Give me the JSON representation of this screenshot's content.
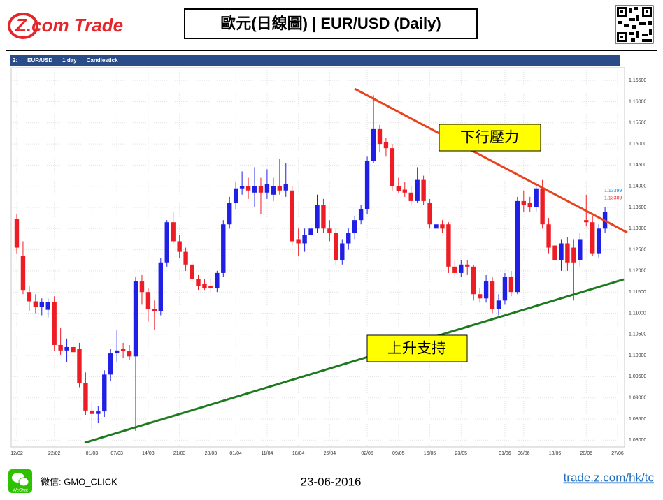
{
  "header": {
    "logo": "Z.com Trade",
    "title": "歐元(日線圖) | EUR/USD (Daily)"
  },
  "chart_data": {
    "type": "candlestick",
    "toolbar": [
      "2:",
      "EUR/USD",
      "1 day",
      "Candlestick"
    ],
    "categories": [
      "12/02",
      null,
      null,
      null,
      null,
      null,
      "22/02",
      null,
      null,
      null,
      null,
      null,
      "01/03",
      null,
      null,
      null,
      "07/03",
      null,
      null,
      null,
      null,
      "14/03",
      null,
      null,
      null,
      null,
      "21/03",
      null,
      null,
      null,
      null,
      "28/03",
      null,
      null,
      null,
      "01/04",
      null,
      null,
      null,
      null,
      "11/04",
      null,
      null,
      null,
      null,
      "18/04",
      null,
      null,
      null,
      null,
      "25/04",
      null,
      null,
      null,
      null,
      null,
      "02/05",
      null,
      null,
      null,
      null,
      "09/05",
      null,
      null,
      null,
      null,
      "16/05",
      null,
      null,
      null,
      null,
      "23/05",
      null,
      null,
      null,
      null,
      null,
      null,
      "01/06",
      null,
      null,
      "06/06",
      null,
      null,
      null,
      null,
      "13/06",
      null,
      null,
      null,
      null,
      "20/06",
      null,
      null,
      null,
      null,
      "27/06"
    ],
    "ohlc": [
      [
        1.1323,
        1.1335,
        1.124,
        1.1255
      ],
      [
        1.1235,
        1.127,
        1.1145,
        1.1155
      ],
      [
        1.115,
        1.1165,
        1.1105,
        1.1128
      ],
      [
        1.1128,
        1.1145,
        1.11,
        1.1115
      ],
      [
        1.1115,
        1.1135,
        1.1095,
        1.1127
      ],
      [
        1.1108,
        1.1135,
        1.109,
        1.1127
      ],
      [
        1.1127,
        1.114,
        1.101,
        1.1025
      ],
      [
        1.1025,
        1.1065,
        1.1,
        1.1012
      ],
      [
        1.1012,
        1.104,
        1.0985,
        1.102
      ],
      [
        1.102,
        1.105,
        1.0995,
        1.1008
      ],
      [
        1.1015,
        1.103,
        1.0925,
        1.0935
      ],
      [
        1.0935,
        1.096,
        1.086,
        1.087
      ],
      [
        1.087,
        1.089,
        1.0825,
        1.0862
      ],
      [
        1.0862,
        1.088,
        1.084,
        1.0868
      ],
      [
        1.0868,
        1.0965,
        1.0855,
        1.0955
      ],
      [
        1.0955,
        1.1015,
        1.094,
        1.1005
      ],
      [
        1.1005,
        1.106,
        1.0985,
        1.1012
      ],
      [
        1.1015,
        1.103,
        1.0995,
        1.101
      ],
      [
        1.101,
        1.1025,
        1.099,
        1.0998
      ],
      [
        1.0998,
        1.1185,
        1.0822,
        1.1175
      ],
      [
        1.1175,
        1.119,
        1.112,
        1.115
      ],
      [
        1.115,
        1.116,
        1.108,
        1.111
      ],
      [
        1.111,
        1.113,
        1.106,
        1.1105
      ],
      [
        1.1105,
        1.123,
        1.1095,
        1.122
      ],
      [
        1.122,
        1.132,
        1.121,
        1.1315
      ],
      [
        1.1315,
        1.134,
        1.1265,
        1.127
      ],
      [
        1.127,
        1.1285,
        1.123,
        1.1245
      ],
      [
        1.1245,
        1.1255,
        1.12,
        1.1215
      ],
      [
        1.1215,
        1.1225,
        1.1165,
        1.118
      ],
      [
        1.118,
        1.119,
        1.1155,
        1.1165
      ],
      [
        1.117,
        1.118,
        1.1155,
        1.116
      ],
      [
        1.1165,
        1.118,
        1.115,
        1.116
      ],
      [
        1.116,
        1.12,
        1.115,
        1.1195
      ],
      [
        1.1195,
        1.132,
        1.1185,
        1.131
      ],
      [
        1.131,
        1.1375,
        1.13,
        1.136
      ],
      [
        1.136,
        1.141,
        1.1345,
        1.1395
      ],
      [
        1.1395,
        1.1435,
        1.138,
        1.14
      ],
      [
        1.14,
        1.142,
        1.137,
        1.139
      ],
      [
        1.1385,
        1.1445,
        1.135,
        1.14
      ],
      [
        1.14,
        1.142,
        1.1335,
        1.1385
      ],
      [
        1.1385,
        1.144,
        1.137,
        1.1405
      ],
      [
        1.138,
        1.142,
        1.1365,
        1.14
      ],
      [
        1.14,
        1.1465,
        1.138,
        1.139
      ],
      [
        1.139,
        1.1455,
        1.1375,
        1.1405
      ],
      [
        1.139,
        1.14,
        1.126,
        1.127
      ],
      [
        1.1275,
        1.13,
        1.1235,
        1.1265
      ],
      [
        1.1265,
        1.13,
        1.1245,
        1.1285
      ],
      [
        1.1285,
        1.131,
        1.127,
        1.13
      ],
      [
        1.13,
        1.138,
        1.129,
        1.1355
      ],
      [
        1.1355,
        1.137,
        1.129,
        1.13
      ],
      [
        1.13,
        1.132,
        1.127,
        1.129
      ],
      [
        1.129,
        1.13,
        1.1215,
        1.1225
      ],
      [
        1.1225,
        1.1275,
        1.1215,
        1.1265
      ],
      [
        1.1265,
        1.13,
        1.125,
        1.129
      ],
      [
        1.129,
        1.133,
        1.1275,
        1.132
      ],
      [
        1.132,
        1.1355,
        1.131,
        1.1345
      ],
      [
        1.1345,
        1.147,
        1.1335,
        1.146
      ],
      [
        1.146,
        1.1615,
        1.1455,
        1.1535
      ],
      [
        1.1535,
        1.1545,
        1.148,
        1.15
      ],
      [
        1.1505,
        1.1515,
        1.147,
        1.149
      ],
      [
        1.149,
        1.15,
        1.139,
        1.14
      ],
      [
        1.14,
        1.142,
        1.1385,
        1.1388
      ],
      [
        1.1392,
        1.141,
        1.1375,
        1.1385
      ],
      [
        1.1385,
        1.14,
        1.1355,
        1.1365
      ],
      [
        1.1365,
        1.1445,
        1.136,
        1.1415
      ],
      [
        1.1415,
        1.1425,
        1.1355,
        1.1365
      ],
      [
        1.136,
        1.137,
        1.13,
        1.131
      ],
      [
        1.13,
        1.1325,
        1.129,
        1.131
      ],
      [
        1.131,
        1.132,
        1.129,
        1.13
      ],
      [
        1.131,
        1.1315,
        1.1195,
        1.121
      ],
      [
        1.121,
        1.1225,
        1.1185,
        1.1195
      ],
      [
        1.1195,
        1.1225,
        1.1185,
        1.1215
      ],
      [
        1.1215,
        1.1225,
        1.119,
        1.121
      ],
      [
        1.121,
        1.1215,
        1.113,
        1.1145
      ],
      [
        1.1145,
        1.116,
        1.1125,
        1.1135
      ],
      [
        1.1135,
        1.119,
        1.1125,
        1.1175
      ],
      [
        1.1175,
        1.1185,
        1.11,
        1.111
      ],
      [
        1.111,
        1.1145,
        1.1095,
        1.113
      ],
      [
        1.113,
        1.1195,
        1.112,
        1.1185
      ],
      [
        1.1185,
        1.12,
        1.114,
        1.115
      ],
      [
        1.115,
        1.1375,
        1.1145,
        1.1365
      ],
      [
        1.1365,
        1.139,
        1.134,
        1.1355
      ],
      [
        1.136,
        1.1375,
        1.134,
        1.135
      ],
      [
        1.135,
        1.141,
        1.134,
        1.1395
      ],
      [
        1.1395,
        1.1415,
        1.13,
        1.131
      ],
      [
        1.131,
        1.1325,
        1.124,
        1.1255
      ],
      [
        1.126,
        1.1275,
        1.12,
        1.1225
      ],
      [
        1.1225,
        1.1275,
        1.12,
        1.1265
      ],
      [
        1.1265,
        1.128,
        1.12,
        1.122
      ],
      [
        1.1255,
        1.1275,
        1.113,
        1.122
      ],
      [
        1.1225,
        1.129,
        1.121,
        1.1275
      ],
      [
        1.132,
        1.138,
        1.1305,
        1.1315
      ],
      [
        1.1315,
        1.133,
        1.1235,
        1.124
      ],
      [
        1.124,
        1.131,
        1.123,
        1.13
      ],
      [
        1.13,
        1.135,
        1.129,
        1.1339
      ],
      null,
      null
    ],
    "up_color": "#1f1fe6",
    "down_color": "#ee1c24",
    "ylim": [
      1.0784,
      1.168
    ],
    "yticks": [
      {
        "value": 1.08,
        "label": "1.08000"
      },
      {
        "value": 1.085,
        "label": "1.08500"
      },
      {
        "value": 1.09,
        "label": "1.09000"
      },
      {
        "value": 1.095,
        "label": "1.09500"
      },
      {
        "value": 1.1,
        "label": "1.10000"
      },
      {
        "value": 1.105,
        "label": "1.10500"
      },
      {
        "value": 1.11,
        "label": "1.11000"
      },
      {
        "value": 1.115,
        "label": "1.11500"
      },
      {
        "value": 1.12,
        "label": "1.12000"
      },
      {
        "value": 1.125,
        "label": "1.12500"
      },
      {
        "value": 1.13,
        "label": "1.13000"
      },
      {
        "value": 1.135,
        "label": "1.13500"
      },
      {
        "value": 1.14,
        "label": "1.14000"
      },
      {
        "value": 1.145,
        "label": "1.14500"
      },
      {
        "value": 1.15,
        "label": "1.15000"
      },
      {
        "value": 1.155,
        "label": "1.15500"
      },
      {
        "value": 1.16,
        "label": "1.16000"
      },
      {
        "value": 1.165,
        "label": "1.16500"
      }
    ],
    "grid": true,
    "price_markers": [
      {
        "value": 1.13399,
        "color": "#1a8fd6"
      },
      {
        "value": 1.13389,
        "color": "#e8262e"
      }
    ],
    "annotations": [
      "下行壓力",
      "上升支持"
    ]
  },
  "footer": {
    "wechat_icon": "WeChat",
    "wechat": "微信: GMO_CLICK",
    "date": "23-06-2016",
    "link": "trade.z.com/hk/tc"
  }
}
